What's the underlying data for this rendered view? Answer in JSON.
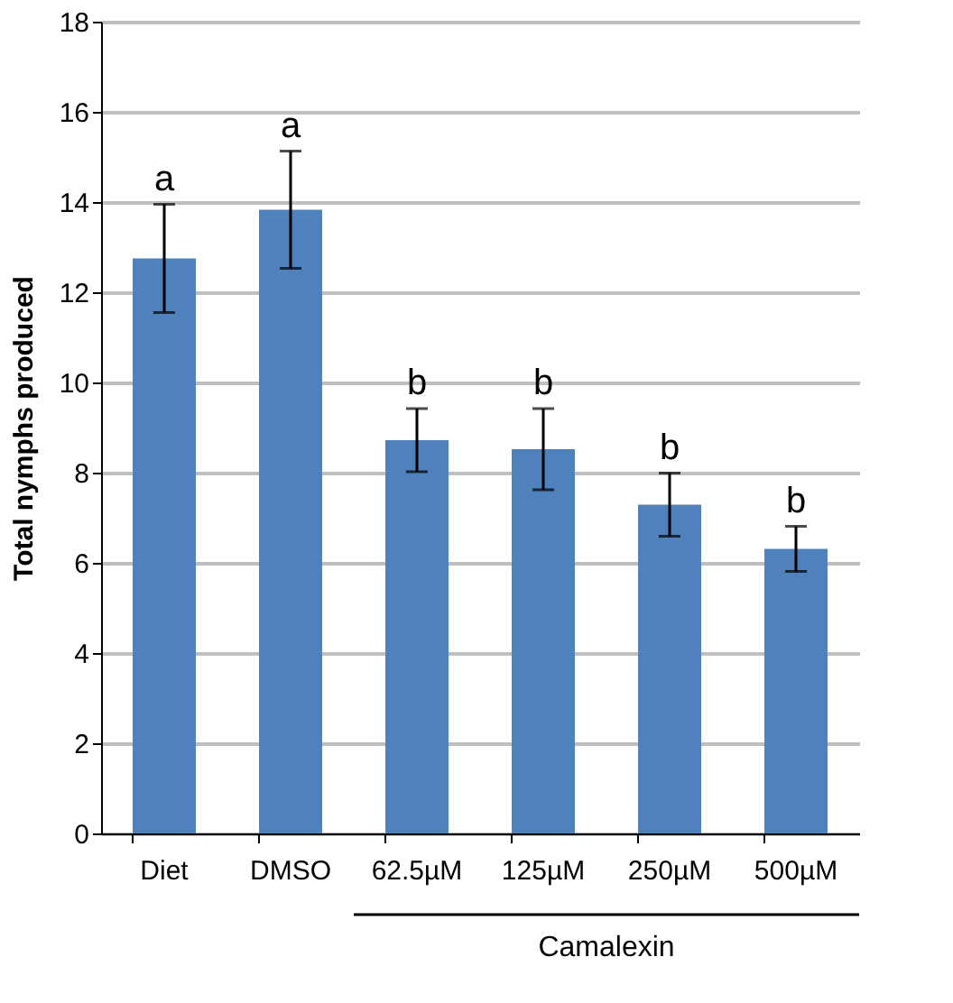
{
  "chart_data": {
    "type": "bar",
    "ylabel": "Total nymphs produced",
    "categories": [
      "Diet",
      "DMSO",
      "62.5µM",
      "125µM",
      "250µM",
      "500µM"
    ],
    "values": [
      12.75,
      13.83,
      8.72,
      8.52,
      7.29,
      6.31
    ],
    "errors": [
      1.2,
      1.3,
      0.7,
      0.9,
      0.7,
      0.5
    ],
    "color": "#4f81bd",
    "ylim": [
      0,
      18
    ],
    "yticks": [
      0,
      2,
      4,
      6,
      8,
      10,
      12,
      14,
      16,
      18
    ],
    "grid": "y",
    "annotations": [
      {
        "text": "a",
        "x": "Diet",
        "y": 13.95
      },
      {
        "text": "a",
        "x": "DMSO",
        "y": 15.13
      },
      {
        "text": "b",
        "x": "62.5µM",
        "y": 9.42
      },
      {
        "text": "b",
        "x": "125µM",
        "y": 9.42
      },
      {
        "text": "b",
        "x": "250µM",
        "y": 7.99
      },
      {
        "text": "b",
        "x": "500µM",
        "y": 6.81
      },
      "Camalexin"
    ]
  }
}
